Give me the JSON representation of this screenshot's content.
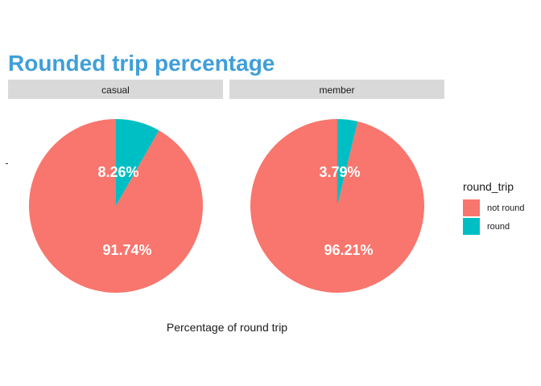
{
  "chart_data": {
    "type": "pie",
    "title": "Rounded trip percentage",
    "xlabel": "Percentage of round trip",
    "legend": {
      "title": "round_trip",
      "placement": "right",
      "entries": [
        "not round",
        "round"
      ]
    },
    "categories": [
      "not round",
      "round"
    ],
    "colors": {
      "not round": "#F8766D",
      "round": "#00BFC4",
      "title": "#3F9FD9",
      "strip": "#D9D9D9"
    },
    "panels": [
      {
        "facet": "casual",
        "values": [
          91.74,
          8.26
        ],
        "labels": [
          "91.74%",
          "8.26%"
        ]
      },
      {
        "facet": "member",
        "values": [
          96.21,
          3.79
        ],
        "labels": [
          "96.21%",
          "3.79%"
        ]
      }
    ]
  }
}
